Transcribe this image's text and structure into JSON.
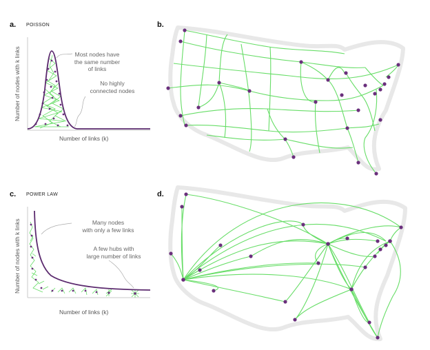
{
  "panels": {
    "a": {
      "letter": "a.",
      "title": "POISSON",
      "ylabel": "Number of nodes with k links",
      "xlabel": "Number of links (k)",
      "annotation_1": [
        "Most nodes have",
        "the same number",
        "of links"
      ],
      "annotation_2": [
        "No highly",
        "connected nodes"
      ]
    },
    "b": {
      "letter": "b."
    },
    "c": {
      "letter": "c.",
      "title": "POWER LAW",
      "ylabel": "Number of nodes with k links",
      "xlabel": "Number of links (k)",
      "annotation_1": [
        "Many nodes",
        "with only a few links"
      ],
      "annotation_2": [
        "A few hubs with",
        "large number of links"
      ]
    },
    "d": {
      "letter": "d."
    }
  },
  "colors": {
    "curve": "#5b2a6e",
    "node": "#6a2f7c",
    "link": "#66dd66",
    "outline": "#e8e8e8"
  }
}
